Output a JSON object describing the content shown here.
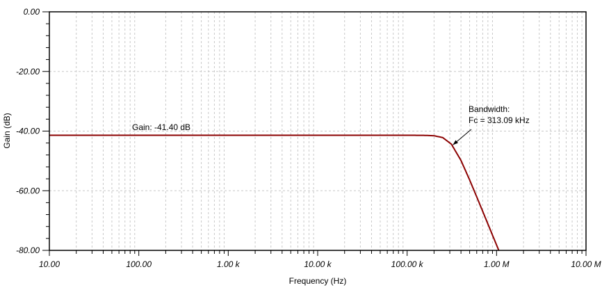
{
  "chart_data": {
    "type": "line",
    "title": "",
    "xlabel": "Frequency (Hz)",
    "ylabel": "Gain (dB)",
    "x_scale": "log",
    "xlim": [
      10,
      10000000
    ],
    "ylim": [
      -80,
      0
    ],
    "x_ticks": [
      10,
      100,
      1000,
      10000,
      100000,
      1000000,
      10000000
    ],
    "x_tick_labels": [
      "10.00",
      "100.00",
      "1.00 k",
      "10.00 k",
      "100.00 k",
      "1.00 M",
      "10.00 M"
    ],
    "y_ticks": [
      0,
      -20,
      -40,
      -60,
      -80
    ],
    "y_tick_labels": [
      "0.00",
      "-20.00",
      "-40.00",
      "-60.00",
      "-80.00"
    ],
    "grid": true,
    "series": [
      {
        "color": "#8b0000",
        "x": [
          10,
          100,
          1000,
          10000,
          50000,
          100000,
          150000,
          200000,
          250000,
          313090,
          400000,
          500000,
          600000,
          700000,
          800000,
          900000,
          1000000,
          1050000,
          1058000
        ],
        "y": [
          -41.4,
          -41.4,
          -41.4,
          -41.4,
          -41.4,
          -41.4,
          -41.42,
          -41.56,
          -42.17,
          -44.41,
          -49.84,
          -56.38,
          -62.05,
          -66.92,
          -71.15,
          -74.88,
          -78.21,
          -79.76,
          -80.0
        ]
      }
    ],
    "annotations": [
      {
        "text": "Gain: -41.40 dB",
        "x": 1000,
        "y": -41.4
      },
      {
        "lines": [
          "Bandwidth:",
          "Fc = 313.09 kHz"
        ],
        "x": 313090,
        "y": -44.41,
        "arrow": true
      }
    ]
  }
}
